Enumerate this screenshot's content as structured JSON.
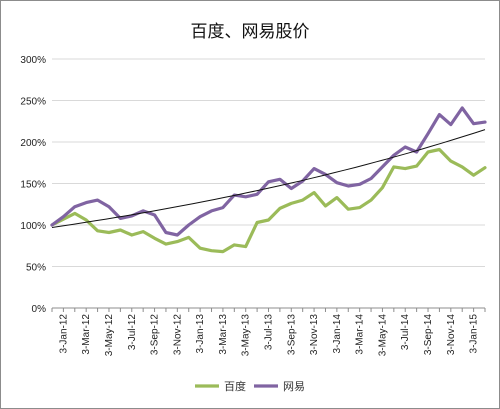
{
  "chart_data": {
    "type": "line",
    "title": "百度、网易股价",
    "xlabel": "",
    "ylabel": "",
    "ylim": [
      0,
      300
    ],
    "y_ticks": [
      "0%",
      "50%",
      "100%",
      "150%",
      "200%",
      "250%",
      "300%"
    ],
    "y_tick_values": [
      0,
      50,
      100,
      150,
      200,
      250,
      300
    ],
    "x_tick_labels": [
      "3-Jan-12",
      "3-Mar-12",
      "3-May-12",
      "3-Jul-12",
      "3-Sep-12",
      "3-Nov-12",
      "3-Jan-13",
      "3-Mar-13",
      "3-May-13",
      "3-Jul-13",
      "3-Sep-13",
      "3-Nov-13",
      "3-Jan-14",
      "3-Mar-14",
      "3-May-14",
      "3-Jul-14",
      "3-Sep-14",
      "3-Nov-14",
      "3-Jan-15"
    ],
    "grid": true,
    "legend_position": "bottom",
    "series": [
      {
        "name": "百度",
        "color": "#9bbb59",
        "values": [
          100,
          107,
          114,
          106,
          93,
          91,
          94,
          88,
          92,
          84,
          77,
          80,
          85,
          72,
          69,
          68,
          76,
          74,
          103,
          106,
          120,
          126,
          130,
          139,
          123,
          133,
          119,
          121,
          130,
          145,
          170,
          168,
          171,
          188,
          191,
          177,
          170,
          160,
          169
        ]
      },
      {
        "name": "网易",
        "color": "#8064a2",
        "values": [
          100,
          110,
          122,
          127,
          130,
          122,
          108,
          111,
          117,
          112,
          91,
          88,
          100,
          110,
          117,
          121,
          136,
          134,
          137,
          152,
          155,
          144,
          153,
          168,
          161,
          151,
          147,
          149,
          156,
          170,
          184,
          194,
          188,
          210,
          233,
          221,
          241,
          222,
          224
        ]
      }
    ],
    "trendline": {
      "color": "#111111",
      "start": 97,
      "end": 215
    }
  }
}
